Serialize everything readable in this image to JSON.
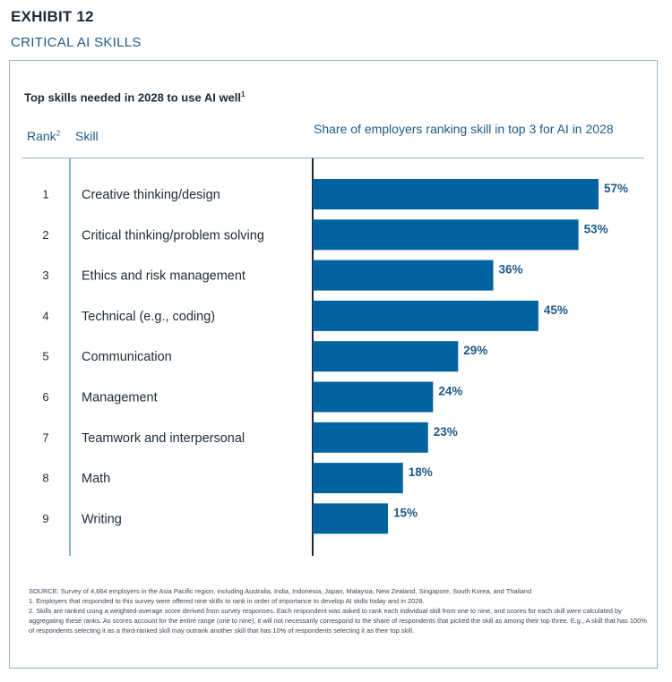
{
  "exhibit": {
    "label": "EXHIBIT 12",
    "title": "CRITICAL AI SKILLS"
  },
  "chart_data": {
    "type": "bar",
    "orientation": "horizontal",
    "title": "Top skills needed in 2028 to use AI well",
    "title_footnote": "1",
    "rank_header": "Rank",
    "rank_header_footnote": "2",
    "skill_header": "Skill",
    "value_header": "Share of employers ranking skill in top 3 for AI in 2028",
    "ranks": [
      "1",
      "2",
      "3",
      "4",
      "5",
      "6",
      "7",
      "8",
      "9"
    ],
    "categories": [
      "Creative thinking/design",
      "Critical thinking/problem solving",
      "Ethics and risk management",
      "Technical (e.g., coding)",
      "Communication",
      "Management",
      "Teamwork and interpersonal",
      "Math",
      "Writing"
    ],
    "values": [
      57,
      53,
      36,
      45,
      29,
      24,
      23,
      18,
      15
    ],
    "value_labels": [
      "57%",
      "53%",
      "36%",
      "45%",
      "29%",
      "24%",
      "23%",
      "18%",
      "15%"
    ],
    "unit": "%",
    "xlim": [
      0,
      60
    ],
    "bar_color": "#0063a0",
    "label_color": "#1e5a86"
  },
  "footnotes": {
    "source": "SOURCE: Survey of 4,664 employers in the Asia Pacific region, including Australia, India, Indonesia, Japan, Malaysia, New Zealand, Singapore, South Korea, and Thailand",
    "note1": "1.  Employers that responded to this survey were offered nine skills to rank in order of importance to develop AI skills today and in 2028.",
    "note2": "2.  Skills are ranked using a weighted-average score derived from survey responses. Each respondent was asked to rank each individual skill from one to nine, and scores for each skill were calculated by aggregating these ranks. As scores account for the entire range (one to nine), it will not necessarily correspond to the share of respondents that picked the skill as among their top three. E.g., A skill that has 100% of respondents selecting it as a third-ranked skill may outrank another skill that has 10% of respondents selecting it as their top skill."
  }
}
